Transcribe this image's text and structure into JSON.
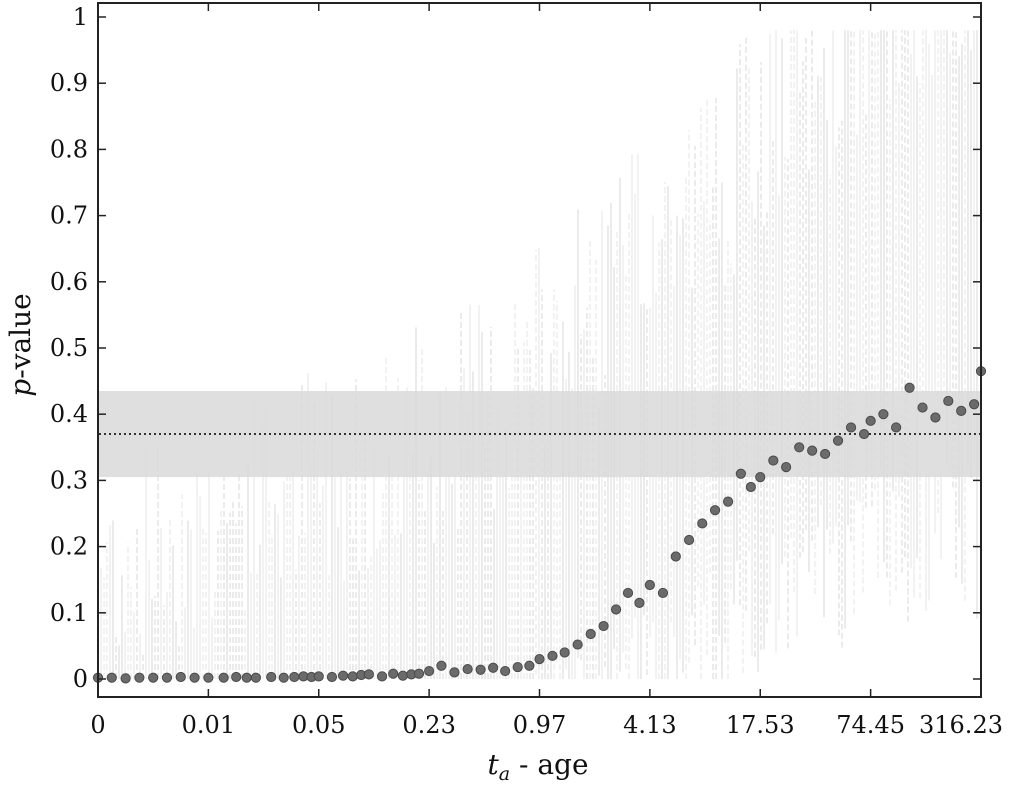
{
  "chart_data": {
    "type": "scatter",
    "title": "",
    "xlabel": {
      "var": "t",
      "sub": "a",
      "text": " - age"
    },
    "ylabel": {
      "var": "p",
      "text": "-value"
    },
    "x_scale": "log",
    "xlim": [
      0,
      316.23
    ],
    "ylim": [
      0,
      1
    ],
    "grid": false,
    "x_ticks": [
      "0",
      "0.01",
      "0.05",
      "0.23",
      "0.97",
      "4.13",
      "17.53",
      "74.45",
      "316.23"
    ],
    "y_ticks": [
      "0",
      "0.1",
      "0.2",
      "0.3",
      "0.4",
      "0.5",
      "0.6",
      "0.7",
      "0.8",
      "0.9",
      "1"
    ],
    "reference_line": {
      "y": 0.37,
      "style": "dotted"
    },
    "reference_band": {
      "y_min": 0.305,
      "y_max": 0.435
    },
    "points_note": "median p-value per age bin with vertical spread ranges",
    "series": [
      {
        "x": [
          0,
          0.00125,
          0.0025,
          0.00375,
          0.005,
          0.00625,
          0.0075,
          0.00875,
          0.01,
          0.0125,
          0.015,
          0.0175,
          0.02,
          0.025,
          0.03,
          0.035,
          0.04,
          0.045,
          0.05,
          0.06,
          0.07,
          0.08,
          0.09,
          0.1,
          0.12,
          0.14,
          0.16,
          0.18,
          0.2,
          0.23,
          0.27,
          0.32,
          0.38,
          0.45,
          0.53,
          0.62,
          0.73,
          0.85,
          0.97,
          1.15,
          1.35,
          1.6,
          1.9,
          2.25,
          2.65,
          3.1,
          3.6,
          4.13,
          4.9,
          5.8,
          6.9,
          8.2,
          9.7,
          11.5,
          13.6,
          15.5,
          17.53,
          20.8,
          24.6,
          29.2,
          34.6,
          41,
          48.6,
          57.6,
          68.3,
          74.45,
          88,
          104,
          124,
          147,
          174,
          206,
          244,
          289,
          316.23
        ],
        "y": [
          0.002,
          0.002,
          0.001,
          0.002,
          0.002,
          0.002,
          0.003,
          0.002,
          0.002,
          0.002,
          0.003,
          0.002,
          0.002,
          0.003,
          0.002,
          0.003,
          0.004,
          0.003,
          0.004,
          0.003,
          0.005,
          0.004,
          0.006,
          0.007,
          0.004,
          0.008,
          0.005,
          0.007,
          0.008,
          0.012,
          0.02,
          0.01,
          0.015,
          0.014,
          0.017,
          0.012,
          0.018,
          0.02,
          0.03,
          0.035,
          0.04,
          0.052,
          0.068,
          0.08,
          0.105,
          0.13,
          0.115,
          0.142,
          0.13,
          0.185,
          0.21,
          0.235,
          0.255,
          0.268,
          0.31,
          0.29,
          0.305,
          0.33,
          0.32,
          0.35,
          0.345,
          0.34,
          0.36,
          0.38,
          0.37,
          0.39,
          0.4,
          0.38,
          0.44,
          0.41,
          0.395,
          0.42,
          0.405,
          0.415,
          0.465
        ]
      }
    ]
  }
}
